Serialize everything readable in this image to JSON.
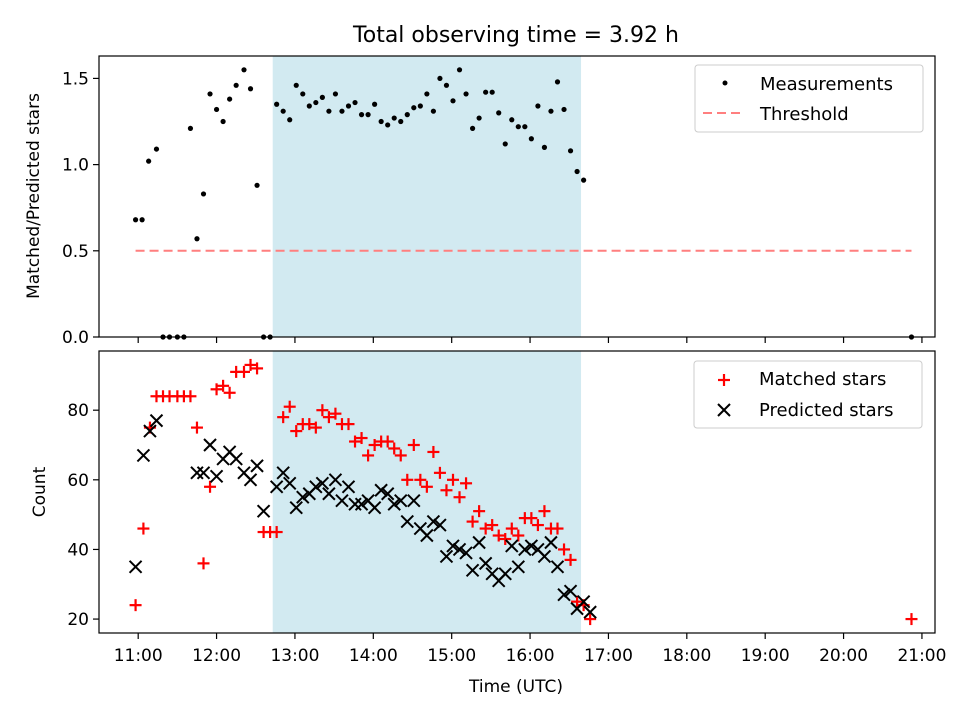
{
  "chart_data": [
    {
      "type": "scatter",
      "title": "Total observing time = 3.92 h",
      "xlabel": "",
      "ylabel": "Matched/Predicted stars",
      "xlim": [
        "10:30",
        "21:10"
      ],
      "ylim": [
        0,
        1.63
      ],
      "yticks": [
        "0.0",
        "0.5",
        "1.0",
        "1.5"
      ],
      "grid": false,
      "legend_position": "top-right",
      "shaded_span": {
        "start": "12:43",
        "end": "16:39",
        "color": "#add8e6"
      },
      "legend": {
        "measurements": "Measurements",
        "threshold": "Threshold"
      },
      "threshold": {
        "name": "Threshold",
        "y": 0.5,
        "x_start": "10:58",
        "x_end": "20:52",
        "color": "#ff7f7f"
      },
      "series": [
        {
          "name": "Measurements",
          "color": "#000000",
          "points": [
            [
              "10:58",
              0.68
            ],
            [
              "11:03",
              0.68
            ],
            [
              "11:08",
              1.02
            ],
            [
              "11:14",
              1.09
            ],
            [
              "11:19",
              0.0
            ],
            [
              "11:24",
              0.0
            ],
            [
              "11:30",
              0.0
            ],
            [
              "11:35",
              0.0
            ],
            [
              "11:40",
              1.21
            ],
            [
              "11:45",
              0.57
            ],
            [
              "11:50",
              0.83
            ],
            [
              "11:55",
              1.41
            ],
            [
              "12:00",
              1.32
            ],
            [
              "12:05",
              1.25
            ],
            [
              "12:10",
              1.38
            ],
            [
              "12:15",
              1.46
            ],
            [
              "12:21",
              1.55
            ],
            [
              "12:26",
              1.44
            ],
            [
              "12:31",
              0.88
            ],
            [
              "12:36",
              0.0
            ],
            [
              "12:41",
              0.0
            ],
            [
              "12:46",
              1.35
            ],
            [
              "12:51",
              1.31
            ],
            [
              "12:56",
              1.26
            ],
            [
              "13:01",
              1.46
            ],
            [
              "13:06",
              1.41
            ],
            [
              "13:11",
              1.34
            ],
            [
              "13:16",
              1.36
            ],
            [
              "13:21",
              1.39
            ],
            [
              "13:26",
              1.31
            ],
            [
              "13:31",
              1.41
            ],
            [
              "13:36",
              1.31
            ],
            [
              "13:41",
              1.34
            ],
            [
              "13:46",
              1.36
            ],
            [
              "13:51",
              1.29
            ],
            [
              "13:56",
              1.29
            ],
            [
              "14:01",
              1.35
            ],
            [
              "14:06",
              1.25
            ],
            [
              "14:11",
              1.23
            ],
            [
              "14:16",
              1.27
            ],
            [
              "14:21",
              1.25
            ],
            [
              "14:26",
              1.29
            ],
            [
              "14:31",
              1.33
            ],
            [
              "14:36",
              1.34
            ],
            [
              "14:41",
              1.41
            ],
            [
              "14:46",
              1.31
            ],
            [
              "14:51",
              1.5
            ],
            [
              "14:56",
              1.46
            ],
            [
              "15:01",
              1.37
            ],
            [
              "15:06",
              1.55
            ],
            [
              "15:11",
              1.41
            ],
            [
              "15:16",
              1.21
            ],
            [
              "15:21",
              1.27
            ],
            [
              "15:26",
              1.42
            ],
            [
              "15:31",
              1.42
            ],
            [
              "15:36",
              1.3
            ],
            [
              "15:41",
              1.12
            ],
            [
              "15:46",
              1.26
            ],
            [
              "15:51",
              1.22
            ],
            [
              "15:56",
              1.22
            ],
            [
              "16:01",
              1.15
            ],
            [
              "16:06",
              1.34
            ],
            [
              "16:11",
              1.1
            ],
            [
              "16:16",
              1.31
            ],
            [
              "16:21",
              1.48
            ],
            [
              "16:26",
              1.32
            ],
            [
              "16:31",
              1.08
            ],
            [
              "16:36",
              0.96
            ],
            [
              "16:41",
              0.91
            ],
            [
              "20:52",
              0.0
            ]
          ]
        }
      ]
    },
    {
      "type": "scatter",
      "title": "",
      "xlabel": "Time (UTC)",
      "ylabel": "Count",
      "xlim": [
        "10:30",
        "21:10"
      ],
      "ylim": [
        16,
        97
      ],
      "yticks": [
        "20",
        "40",
        "60",
        "80"
      ],
      "xticks": [
        "11:00",
        "12:00",
        "13:00",
        "14:00",
        "15:00",
        "16:00",
        "17:00",
        "18:00",
        "19:00",
        "20:00",
        "21:00"
      ],
      "grid": false,
      "legend_position": "top-right",
      "shaded_span": {
        "start": "12:43",
        "end": "16:39",
        "color": "#add8e6"
      },
      "legend": {
        "matched": "Matched stars",
        "predicted": "Predicted stars"
      },
      "series": [
        {
          "name": "Matched stars",
          "marker": "+",
          "color": "#ff0000",
          "points": [
            [
              "10:58",
              24
            ],
            [
              "11:04",
              46
            ],
            [
              "11:09",
              75
            ],
            [
              "11:14",
              84
            ],
            [
              "11:19",
              84
            ],
            [
              "11:24",
              84
            ],
            [
              "11:30",
              84
            ],
            [
              "11:35",
              84
            ],
            [
              "11:40",
              84
            ],
            [
              "11:45",
              75
            ],
            [
              "11:50",
              36
            ],
            [
              "11:55",
              58
            ],
            [
              "12:00",
              86
            ],
            [
              "12:05",
              87
            ],
            [
              "12:10",
              85
            ],
            [
              "12:15",
              91
            ],
            [
              "12:21",
              91
            ],
            [
              "12:26",
              93
            ],
            [
              "12:31",
              92
            ],
            [
              "12:36",
              45
            ],
            [
              "12:41",
              45
            ],
            [
              "12:46",
              45
            ],
            [
              "12:51",
              78
            ],
            [
              "12:56",
              81
            ],
            [
              "13:01",
              74
            ],
            [
              "13:06",
              76
            ],
            [
              "13:11",
              76
            ],
            [
              "13:16",
              75
            ],
            [
              "13:21",
              80
            ],
            [
              "13:26",
              78
            ],
            [
              "13:31",
              79
            ],
            [
              "13:36",
              76
            ],
            [
              "13:41",
              76
            ],
            [
              "13:46",
              71
            ],
            [
              "13:51",
              72
            ],
            [
              "13:56",
              67
            ],
            [
              "14:01",
              70
            ],
            [
              "14:06",
              71
            ],
            [
              "14:11",
              71
            ],
            [
              "14:16",
              69
            ],
            [
              "14:21",
              67
            ],
            [
              "14:26",
              60
            ],
            [
              "14:31",
              70
            ],
            [
              "14:36",
              60
            ],
            [
              "14:41",
              58
            ],
            [
              "14:46",
              68
            ],
            [
              "14:51",
              62
            ],
            [
              "14:56",
              57
            ],
            [
              "15:01",
              60
            ],
            [
              "15:06",
              55
            ],
            [
              "15:11",
              59
            ],
            [
              "15:16",
              48
            ],
            [
              "15:21",
              51
            ],
            [
              "15:26",
              46
            ],
            [
              "15:31",
              47
            ],
            [
              "15:36",
              44
            ],
            [
              "15:41",
              43
            ],
            [
              "15:46",
              46
            ],
            [
              "15:51",
              44
            ],
            [
              "15:56",
              49
            ],
            [
              "16:01",
              49
            ],
            [
              "16:06",
              47
            ],
            [
              "16:11",
              51
            ],
            [
              "16:16",
              46
            ],
            [
              "16:21",
              46
            ],
            [
              "16:26",
              40
            ],
            [
              "16:31",
              37
            ],
            [
              "16:36",
              25
            ],
            [
              "16:41",
              24
            ],
            [
              "16:46",
              20
            ],
            [
              "20:52",
              20
            ]
          ]
        },
        {
          "name": "Predicted stars",
          "marker": "x",
          "color": "#000000",
          "points": [
            [
              "10:58",
              35
            ],
            [
              "11:04",
              67
            ],
            [
              "11:09",
              74
            ],
            [
              "11:14",
              77
            ],
            [
              "11:45",
              62
            ],
            [
              "11:50",
              62
            ],
            [
              "11:55",
              70
            ],
            [
              "12:00",
              61
            ],
            [
              "12:05",
              66
            ],
            [
              "12:10",
              68
            ],
            [
              "12:15",
              66
            ],
            [
              "12:21",
              62
            ],
            [
              "12:26",
              60
            ],
            [
              "12:31",
              64
            ],
            [
              "12:36",
              51
            ],
            [
              "12:46",
              58
            ],
            [
              "12:51",
              62
            ],
            [
              "12:56",
              59
            ],
            [
              "13:01",
              52
            ],
            [
              "13:06",
              55
            ],
            [
              "13:11",
              56
            ],
            [
              "13:16",
              58
            ],
            [
              "13:21",
              59
            ],
            [
              "13:26",
              56
            ],
            [
              "13:31",
              60
            ],
            [
              "13:36",
              54
            ],
            [
              "13:41",
              58
            ],
            [
              "13:46",
              53
            ],
            [
              "13:51",
              53
            ],
            [
              "13:56",
              54
            ],
            [
              "14:01",
              52
            ],
            [
              "14:06",
              57
            ],
            [
              "14:11",
              56
            ],
            [
              "14:16",
              53
            ],
            [
              "14:21",
              54
            ],
            [
              "14:26",
              48
            ],
            [
              "14:31",
              54
            ],
            [
              "14:36",
              46
            ],
            [
              "14:41",
              44
            ],
            [
              "14:46",
              48
            ],
            [
              "14:51",
              47
            ],
            [
              "14:56",
              38
            ],
            [
              "15:01",
              41
            ],
            [
              "15:06",
              40
            ],
            [
              "15:11",
              39
            ],
            [
              "15:16",
              34
            ],
            [
              "15:21",
              42
            ],
            [
              "15:26",
              36
            ],
            [
              "15:31",
              33
            ],
            [
              "15:36",
              31
            ],
            [
              "15:41",
              33
            ],
            [
              "15:46",
              41
            ],
            [
              "15:51",
              35
            ],
            [
              "15:56",
              40
            ],
            [
              "16:01",
              41
            ],
            [
              "16:06",
              40
            ],
            [
              "16:11",
              38
            ],
            [
              "16:16",
              42
            ],
            [
              "16:21",
              35
            ],
            [
              "16:26",
              27
            ],
            [
              "16:31",
              28
            ],
            [
              "16:36",
              23
            ],
            [
              "16:41",
              25
            ],
            [
              "16:46",
              22
            ]
          ]
        }
      ]
    }
  ]
}
